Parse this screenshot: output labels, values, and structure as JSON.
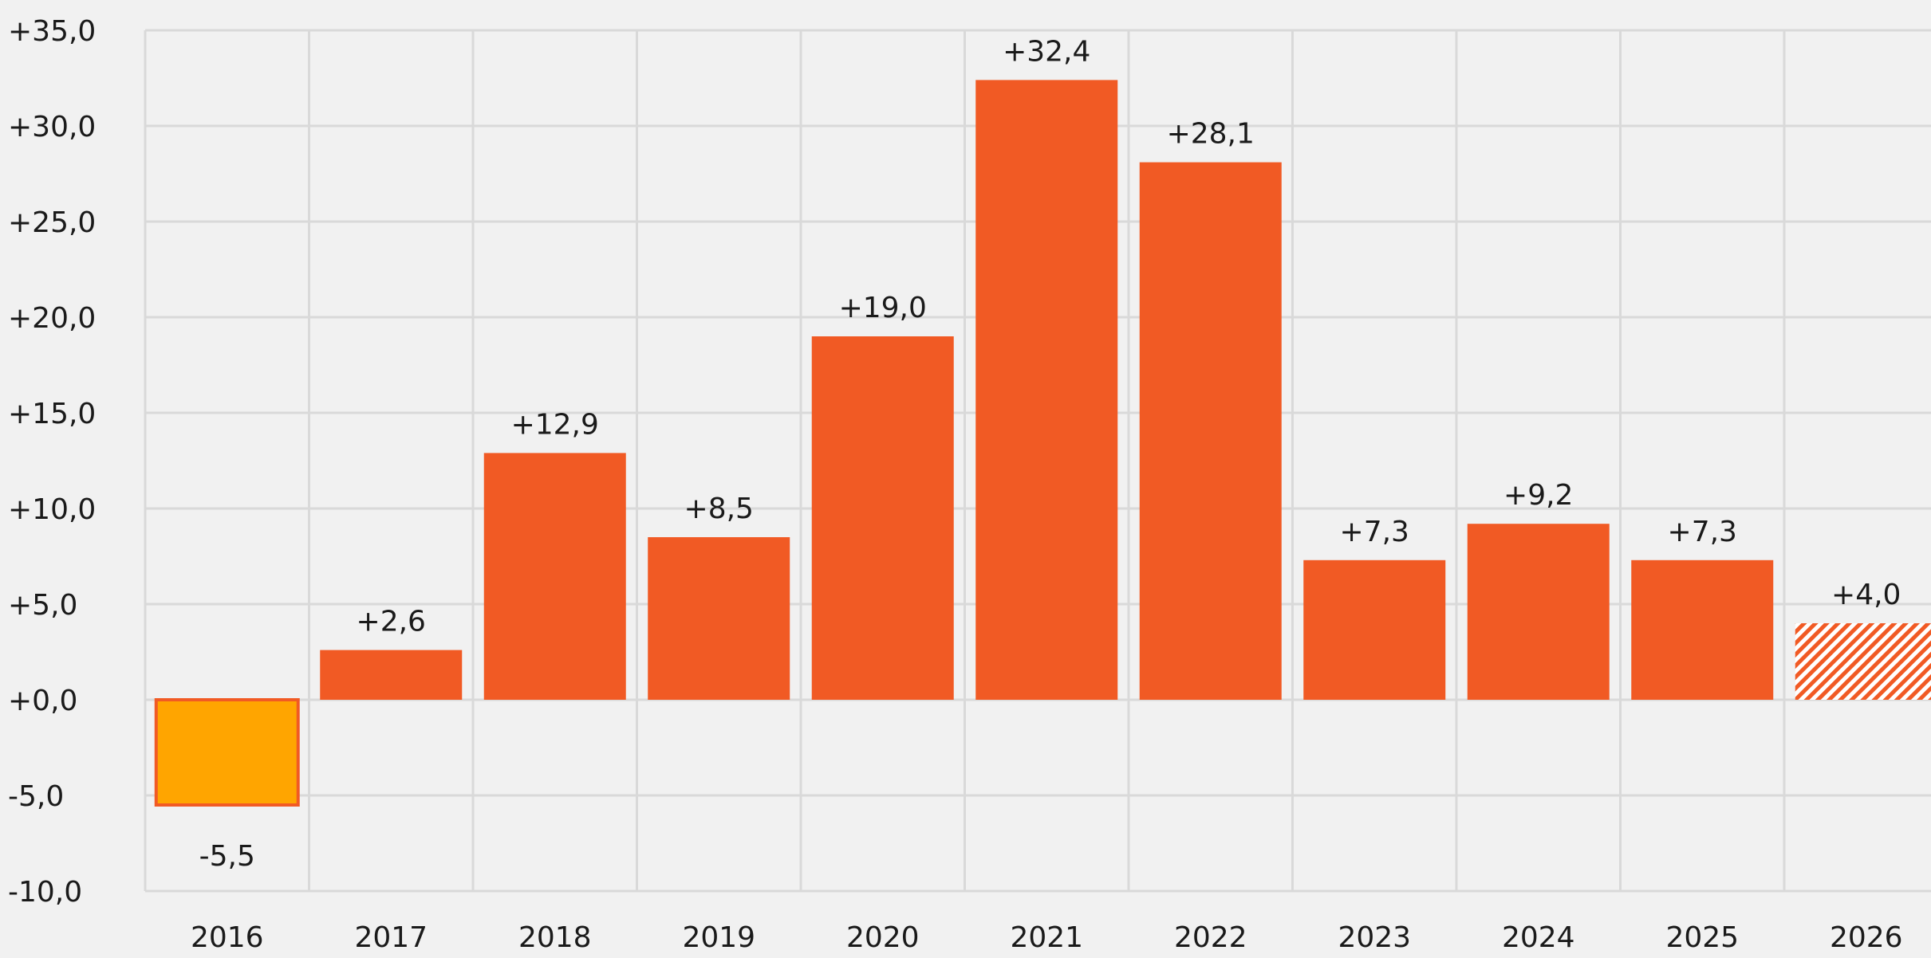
{
  "chart_data": {
    "type": "bar",
    "title": "",
    "xlabel": "",
    "ylabel": "",
    "categories": [
      "2016",
      "2017",
      "2018",
      "2019",
      "2020",
      "2021",
      "2022",
      "2023",
      "2024",
      "2025",
      "2026"
    ],
    "values": [
      -5.5,
      2.6,
      12.9,
      8.5,
      19.0,
      32.4,
      28.1,
      7.3,
      9.2,
      7.3,
      4.0
    ],
    "data_labels": [
      "-5,5",
      "+2,6",
      "+12,9",
      "+8,5",
      "+19,0",
      "+32,4",
      "+28,1",
      "+7,3",
      "+9,2",
      "+7,3",
      "+4,0"
    ],
    "ylim": [
      -10,
      35
    ],
    "ytick_values": [
      -10,
      -5,
      0,
      5,
      10,
      15,
      20,
      25,
      30,
      35
    ],
    "ytick_labels": [
      "-10,0",
      "-5,0",
      "+0,0",
      "+5,0",
      "+10,0",
      "+15,0",
      "+20,0",
      "+25,0",
      "+30,0",
      "+35,0"
    ],
    "grid": true,
    "bar_styles": [
      "negative",
      "solid",
      "solid",
      "solid",
      "solid",
      "solid",
      "solid",
      "solid",
      "solid",
      "solid",
      "hatched"
    ],
    "colors": {
      "bar": "#f15a24",
      "negative_fill": "#ffa500",
      "negative_border": "#f15a24",
      "grid": "#d9d9d9",
      "background": "#f1f1f1",
      "text": "#1a1a1a"
    }
  }
}
